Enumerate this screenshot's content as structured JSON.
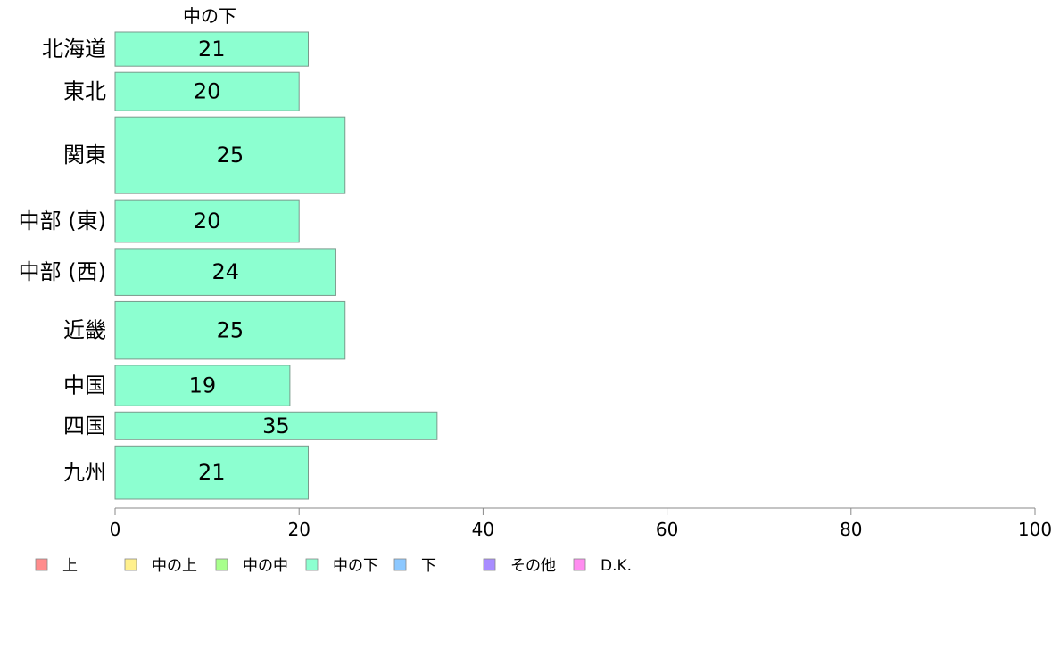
{
  "chart_data": {
    "type": "bar",
    "orientation": "horizontal",
    "header": "中の下",
    "categories": [
      "北海道",
      "東北",
      "関東",
      "中部 (東)",
      "中部 (西)",
      "近畿",
      "中国",
      "四国",
      "九州"
    ],
    "values": [
      21,
      20,
      25,
      20,
      24,
      25,
      19,
      35,
      21
    ],
    "value_labels": [
      "21",
      "20",
      "25",
      "20",
      "24",
      "25",
      "19",
      "35",
      "21"
    ],
    "relative_widths": [
      0.8,
      0.9,
      1.8,
      1.0,
      1.1,
      1.35,
      0.95,
      0.65,
      1.25
    ],
    "xlim": [
      0,
      100
    ],
    "xticks": [
      0,
      20,
      40,
      60,
      80,
      100
    ],
    "xtick_labels": [
      "0",
      "20",
      "40",
      "60",
      "80",
      "100"
    ],
    "grid": false,
    "bar_color": "#8cffd0",
    "legend_position": "bottom",
    "legend": [
      {
        "label": "上",
        "color": "#ff8c8c"
      },
      {
        "label": "中の上",
        "color": "#fff08c"
      },
      {
        "label": "中の中",
        "color": "#a8ff8c"
      },
      {
        "label": "中の下",
        "color": "#8cffd0"
      },
      {
        "label": "下",
        "color": "#8cc8ff"
      },
      {
        "label": "その他",
        "color": "#a88cff"
      },
      {
        "label": "D.K.",
        "color": "#ff8cf0"
      }
    ]
  }
}
